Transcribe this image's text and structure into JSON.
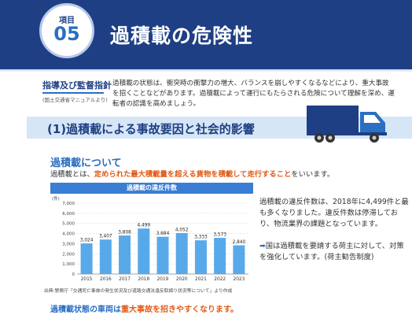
{
  "header": {
    "badge_label": "項目",
    "badge_number": "05",
    "title": "過積載の危険性"
  },
  "guideline": {
    "title": "指導及び監督指針",
    "subtitle": "(国土交通省マニュアルより)",
    "text": "過積載の状態は、衝突時の衝撃力の増大、バランスを崩しやすくなるなどにより、重大事故を招くことなどがあります。過積載によって運行にもたらされる危険について理解を深め、運転者の認識を高めましょう。"
  },
  "section": {
    "title": "(1)過積載による事故要因と社会的影響"
  },
  "definition": {
    "heading": "過積載について",
    "prefix": "過積載とは、",
    "emphasis": "定められた最大積載量を超える貨物を積載して走行すること",
    "suffix": "をいいます。"
  },
  "chart": {
    "header": "過積載の違反件数",
    "source": "出典:警察庁「交通死亡事故の発生状況及び道路交通法違反取締り状況等について」より作成"
  },
  "chart_data": {
    "type": "bar",
    "title": "過積載の違反件数",
    "ylabel": "(件)",
    "categories": [
      "2015",
      "2016",
      "2017",
      "2018",
      "2019",
      "2020",
      "2021",
      "2022",
      "2023"
    ],
    "values": [
      3024,
      3407,
      3808,
      4499,
      3684,
      4052,
      3333,
      3573,
      2840
    ],
    "value_labels": [
      "3,024",
      "3,407",
      "3,808",
      "4,499",
      "3,684",
      "4,052",
      "3,333",
      "3,573",
      "2,840"
    ],
    "y_ticks": [
      0,
      1000,
      2000,
      3000,
      4000,
      5000,
      6000,
      7000
    ],
    "y_tick_labels": [
      "0",
      "1,000",
      "2,000",
      "3,000",
      "4,000",
      "5,000",
      "6,000",
      "7,000"
    ],
    "ylim": [
      0,
      7000
    ],
    "grid": true,
    "bar_color": "#58a9ea"
  },
  "note": {
    "text": "過積載の違反件数は、2018年に4,499件と最も多くなりました。違反件数は停滞しており、物流業界の課題となっています。",
    "bullet_arrow": "➡",
    "bullet_text": "国は過積載を要請する荷主に対して、対策を強化しています。(荷主勧告制度)"
  },
  "bottom": {
    "prefix": "過積載状態の車両は",
    "emphasis": "重大事故を招きやすくなります。"
  }
}
